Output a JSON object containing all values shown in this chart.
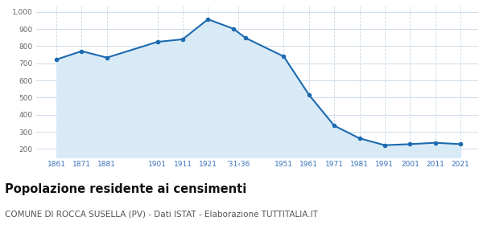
{
  "years": [
    1861,
    1871,
    1881,
    1901,
    1911,
    1921,
    1931,
    1936,
    1951,
    1961,
    1971,
    1981,
    1991,
    2001,
    2011,
    2021
  ],
  "population": [
    722,
    771,
    733,
    825,
    840,
    957,
    902,
    847,
    740,
    516,
    336,
    262,
    222,
    228,
    236,
    228
  ],
  "line_color": "#1c6ab0",
  "fill_color": "#d9eaf7",
  "marker_color": "#1c6ab0",
  "bg_color": "#ffffff",
  "grid_color": "#c8d8e8",
  "title": "Popolazione residente ai censimenti",
  "subtitle": "COMUNE DI ROCCA SUSELLA (PV) - Dati ISTAT - Elaborazione TUTTITALIA.IT",
  "title_fontsize": 10.5,
  "subtitle_fontsize": 7.5,
  "ylim": [
    150,
    1030
  ],
  "yticks": [
    200,
    300,
    400,
    500,
    600,
    700,
    800,
    900,
    1000
  ],
  "ytick_labels": [
    "200",
    "300",
    "400",
    "500",
    "600",
    "700",
    "800",
    "900",
    "1,000"
  ],
  "x_tick_positions": [
    1861,
    1871,
    1881,
    1901,
    1911,
    1921,
    1933,
    1951,
    1961,
    1971,
    1981,
    1991,
    2001,
    2011,
    2021
  ],
  "x_tick_labels": [
    "1861",
    "1871",
    "1881",
    "1901",
    "1911",
    "1921",
    "’31‹36",
    "1951",
    "1961",
    "1971",
    "1981",
    "1991",
    "2001",
    "2011",
    "2021"
  ],
  "xlim": [
    1853,
    2028
  ]
}
